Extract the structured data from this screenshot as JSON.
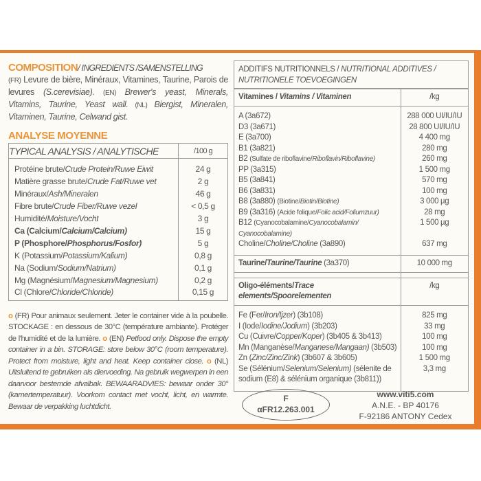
{
  "colors": {
    "accent": "#e87d2b",
    "heading": "#e8943a",
    "text": "#555555",
    "background": "#fdfbf6"
  },
  "composition": {
    "title": "COMPOSITION",
    "subtitle": "/ INGREDIENTS /SAMENSTELLING",
    "fr_tag": "(FR)",
    "fr_text": "Levure de bière, Minéraux, Vitamines, Taurine, Parois de levures ",
    "fr_species": "(S.cerevisiae).",
    "en_tag": " (EN) ",
    "en_text": "Brewer's yeast, Minerals, Vitamins, Taurine, Yeast wall.",
    "nl_tag": " (NL) ",
    "nl_text": "Biergist, Mineralen, Vitaminen, Taurine, Celwand gist."
  },
  "analysis": {
    "title": "ANALYSE MOYENNE",
    "header": "TYPICAL ANALYSIS / ANALYTISCHE",
    "unit": "/100 g",
    "rows": [
      {
        "fr": "Protéine brute/",
        "other": "Crude Protein/Ruwe Eiwit",
        "value": "24 g"
      },
      {
        "fr": "Matière grasse brute/",
        "other": "Crude Fat/Ruwe vet",
        "value": "2 g"
      },
      {
        "fr": "Minéraux/",
        "other": "Ash/Mineralen",
        "value": "46 g"
      },
      {
        "fr": "Fibre brute/",
        "other": "Crude Fiber/Ruwe vezel",
        "value": "< 0,5 g"
      },
      {
        "fr": "Humidité/",
        "other": "Moisture/Vocht",
        "value": "3 g"
      },
      {
        "fr": "Ca (Calcium/",
        "other": "Calcium/Calcium)",
        "value": "15 g",
        "bold": true
      },
      {
        "fr": "P (Phosphore/",
        "other": "Phosphorus/Fosfor)",
        "value": "5 g",
        "bold": true
      },
      {
        "fr": "K (Potassium/",
        "other": "Potassium/Kalium)",
        "value": "0,8 g"
      },
      {
        "fr": "Na (Sodium/",
        "other": "Sodium/Natrium)",
        "value": "0,1 g"
      },
      {
        "fr": "Mg (Magnésium/",
        "other": "Magnesium/Magnesium)",
        "value": "0,2 g"
      },
      {
        "fr": "Cl (Chlore/",
        "other": "Chloride/Chloride)",
        "value": "0,15 g"
      }
    ]
  },
  "notes": {
    "fr": " (FR) Pour animaux seulement. Jeter le container vide à la poubelle. STOCKAGE : en dessous de 30°C (température ambiante). Protéger de l'humidité et de la lumière. ",
    "en_tag": " (EN) ",
    "en": "Petfood only. Dispose the empty container in a bin. STORAGE: store below 30°C (room temperature). Protect from moisture, light and heat. Keep container close. ",
    "nl_tag": " (NL) ",
    "nl": "Uitsluitend te gebruiken als diervoeding. Na gebruik wegwerpen in een daarvoor bestemde afvalbak. BEWAARADVIES: bewaar onder 30° (kamertemperatuur). Voorkom contact met vocht, licht, en warmte. Bewaar de verpakking luchtdicht."
  },
  "additives": {
    "title_fr": "ADDITIFS NUTRITIONNELS / ",
    "title_rest": "NUTRITIONAL ADDITIVES / NUTRITIONELE TOEVOEGINGEN",
    "vitamins_header": "Vitamines / ",
    "vitamins_header_rest": "Vitamins / Vitaminen",
    "vitamins_unit": "/kg",
    "vitamins": [
      {
        "label": "A (3a672)",
        "value": "288 000 UI/IU/IU"
      },
      {
        "label": "D3 (3a671)",
        "value": "28 800 UI/IU/IU"
      },
      {
        "label": "E (3a700)",
        "value": "4 400 mg"
      },
      {
        "label": "B1 (3a821)",
        "value": "280 mg"
      },
      {
        "label": "B2 ",
        "small": "(Sulfate de riboflavine/",
        "small_it": "Riboflavin/Riboflavine)",
        "value": "260 mg"
      },
      {
        "label": "PP (3a315)",
        "value": "1 500 mg"
      },
      {
        "label": "B5 (3a841)",
        "value": "570 mg"
      },
      {
        "label": "B6 (3a831)",
        "value": "100 mg"
      },
      {
        "label": "B8 (3a880) ",
        "small": "(Biotine/",
        "small_it": "Biotin/Biotine)",
        "value": "3 000 µg"
      },
      {
        "label": "B9 (3a316) ",
        "small": "(Acide folique/",
        "small_it": "Folic acid/Foliumzuur)",
        "value": "28 mg"
      },
      {
        "label": "B12 ",
        "small": "(Cyanocobalamine/",
        "small_it": "Cyanocobalamin/ Cyanocobalamine)",
        "value": "1 500 µg"
      },
      {
        "label": "Choline/",
        "small_it": "Choline/Choline",
        "tail": " (3a890)",
        "value": "637 mg"
      }
    ],
    "taurine": {
      "label": "Taurine/",
      "label_it": "Taurine/Taurine",
      "code": " (3a370)",
      "value": "10 000 mg"
    },
    "oligo_header": "Oligo-éléments/",
    "oligo_header_rest": "Trace elements/Spoorelementen",
    "oligo_unit": "/kg",
    "oligo": [
      {
        "label": "Fe (Fer/",
        "it": "Iron/Ijzer",
        "tail": ") (3b108)",
        "value": "825 mg"
      },
      {
        "label": "I (Iode/",
        "it": "Iodine/Jodium",
        "tail": ") (3b203)",
        "value": "33 mg"
      },
      {
        "label": "Cu (Cuivre/",
        "it": "Copper/Koper",
        "tail": ") (3b405 & 3b413)",
        "value": "100 mg"
      },
      {
        "label": "Mn (Manganèse/",
        "it": "Manganese/Mangaan)",
        "tail": " (3b503)",
        "value": "100 mg"
      },
      {
        "label": "Zn (",
        "it": "Zinc/Zinc/Zink",
        "tail": ") (3b607 & 3b605)",
        "value": "1 500 mg"
      },
      {
        "label": "Se (Sélénium/",
        "it": "Selenium/Selenium)",
        "tail": " (sélenite de sodium (E8) & sélénium organique (3b811))",
        "value": "3,3 mg"
      }
    ]
  },
  "stamp": {
    "line1": "F",
    "line2": "αFR12.263.001"
  },
  "address": {
    "website": "www.viti5.com",
    "line1": "A.N.E. - BP 40176",
    "line2": "F-92186 ANTONY Cedex"
  }
}
